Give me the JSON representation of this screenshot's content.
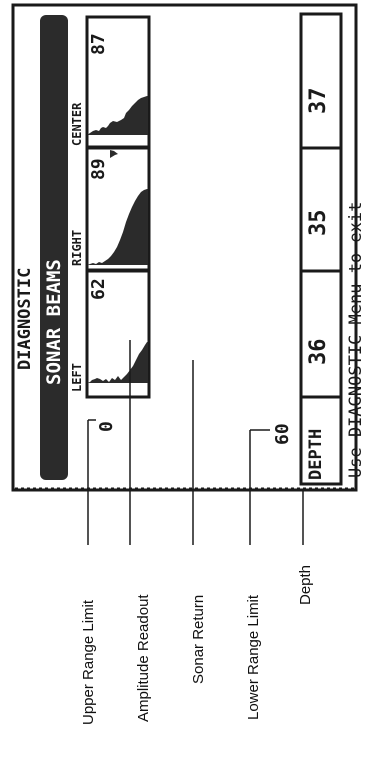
{
  "screen": {
    "title": "DIAGNOSTIC",
    "subtitle": "SONAR BEAMS",
    "footer": "Use DIAGNOSTIC Menu to exit",
    "depth_label": "DEPTH",
    "upper_limit": "0",
    "lower_limit": "60"
  },
  "beams": [
    {
      "label": "LEFT",
      "amplitude": "62",
      "depth": "36"
    },
    {
      "label": "RIGHT",
      "amplitude": "89",
      "depth": "35"
    },
    {
      "label": "CENTER",
      "amplitude": "87",
      "depth": "37"
    }
  ],
  "callouts": {
    "upper_range_limit": "Upper Range Limit",
    "amplitude_readout": "Amplitude Readout",
    "sonar_return": "Sonar Return",
    "lower_range_limit": "Lower Range Limit",
    "depth": "Depth"
  },
  "colors": {
    "ink": "#1a1a1a",
    "paper": "#ffffff",
    "bar": "#2b2b2b"
  }
}
